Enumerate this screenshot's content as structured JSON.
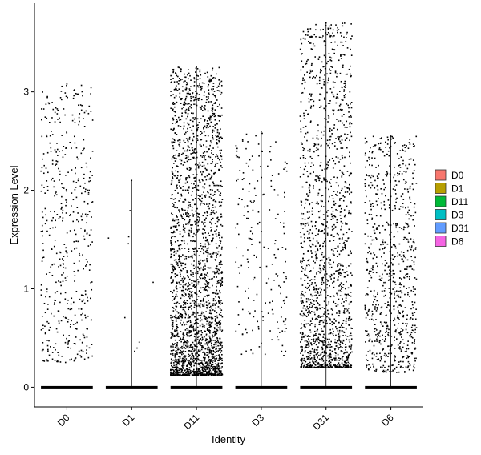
{
  "chart_data": {
    "type": "scatter",
    "subtype": "violin-jitter",
    "xlabel": "Identity",
    "ylabel": "Expression Level",
    "categories": [
      "D0",
      "D1",
      "D11",
      "D3",
      "D31",
      "D6"
    ],
    "yticks": [
      0,
      1,
      2,
      3
    ],
    "ylim": [
      -0.2,
      3.9
    ],
    "legend": {
      "position": "right",
      "entries": [
        {
          "label": "D0",
          "color": "#F8766D"
        },
        {
          "label": "D1",
          "color": "#B79F00"
        },
        {
          "label": "D11",
          "color": "#00BA38"
        },
        {
          "label": "D3",
          "color": "#00BFC4"
        },
        {
          "label": "D31",
          "color": "#619CFF"
        },
        {
          "label": "D6",
          "color": "#F564E3"
        }
      ]
    },
    "grid": false,
    "series": [
      {
        "category": "D0",
        "max": 3.08,
        "nonzero_points": 480,
        "nonzero_range": [
          0.25,
          3.08
        ]
      },
      {
        "category": "D1",
        "max": 2.1,
        "nonzero_points": 9,
        "nonzero_range": [
          0.35,
          2.1
        ]
      },
      {
        "category": "D11",
        "max": 3.25,
        "nonzero_points": 2500,
        "nonzero_range": [
          0.12,
          3.25
        ]
      },
      {
        "category": "D3",
        "max": 2.6,
        "nonzero_points": 200,
        "nonzero_range": [
          0.3,
          2.6
        ]
      },
      {
        "category": "D31",
        "max": 3.7,
        "nonzero_points": 1600,
        "nonzero_range": [
          0.2,
          3.7
        ]
      },
      {
        "category": "D6",
        "max": 2.55,
        "nonzero_points": 800,
        "nonzero_range": [
          0.15,
          2.55
        ]
      }
    ]
  }
}
